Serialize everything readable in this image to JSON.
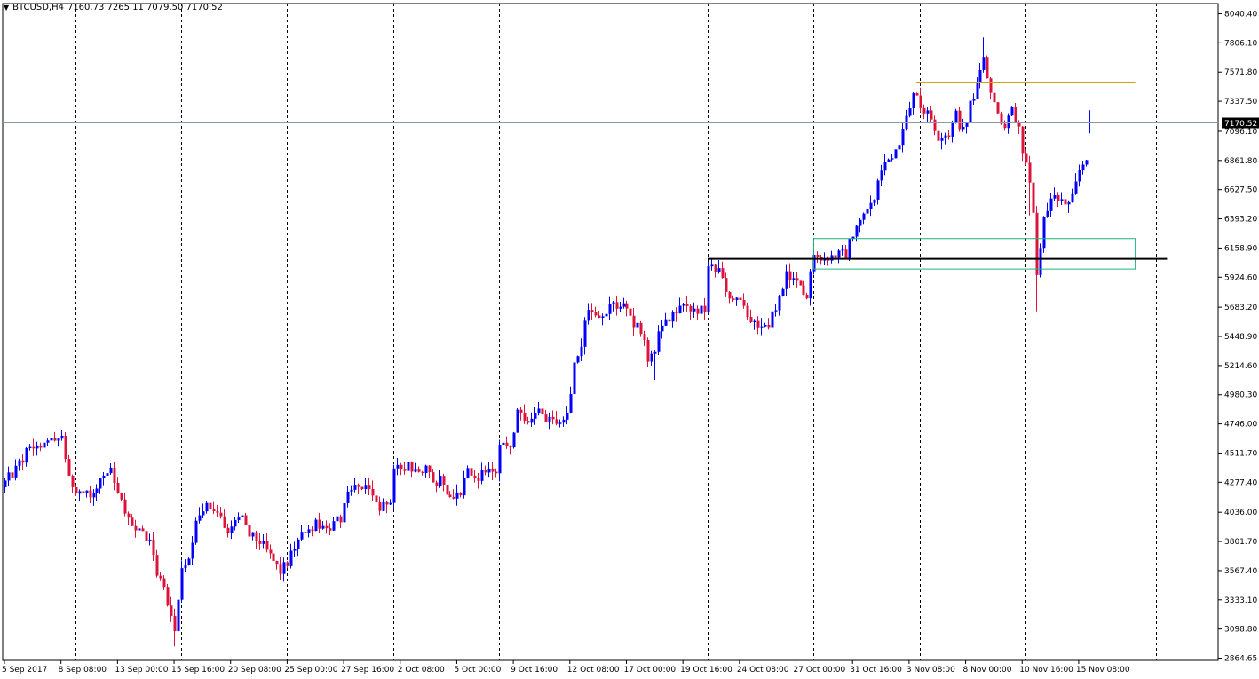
{
  "header": {
    "symbol_label": "BTCUSD,H4",
    "ohlc_text": "7160.73 7265.11 7079.50 7170.52",
    "menu_icon": "triangle-down-icon"
  },
  "colors": {
    "bull": "#0000ff",
    "bear": "#dc143c",
    "grid": "#000000",
    "price_line": "#8a9aa6",
    "resistance": "#d4a017",
    "support": "#000000",
    "zone": "#20b27a",
    "price_tag_bg": "#000000",
    "price_tag_fg": "#ffffff"
  },
  "chart_data": {
    "type": "candlestick",
    "symbol": "BTCUSD",
    "timeframe": "H4",
    "current_price": 7170.52,
    "current_price_label": "7170.52",
    "ylim": [
      2864.65,
      8040.4
    ],
    "y_ticks": [
      8040.4,
      7806.1,
      7571.8,
      7337.5,
      7096.1,
      6861.8,
      6627.5,
      6393.2,
      6158.9,
      5924.6,
      5683.2,
      5448.9,
      5214.6,
      4980.3,
      4746.0,
      4511.7,
      4277.4,
      4036.0,
      3801.7,
      3567.4,
      3333.1,
      3098.8,
      2864.65
    ],
    "y_tick_labels": [
      "8040.40",
      "7806.10",
      "7571.80",
      "7337.50",
      "7096.10",
      "6861.80",
      "6627.50",
      "6393.20",
      "6158.90",
      "5924.60",
      "5683.20",
      "5448.90",
      "5214.60",
      "4980.30",
      "4746.00",
      "4511.70",
      "4277.40",
      "4036.00",
      "3801.70",
      "3567.40",
      "3333.10",
      "3098.80",
      "2864.65"
    ],
    "x_labels": [
      "5 Sep 2017",
      "8 Sep 08:00",
      "13 Sep 00:00",
      "15 Sep 16:00",
      "20 Sep 08:00",
      "25 Sep 00:00",
      "27 Sep 16:00",
      "2 Oct 08:00",
      "5 Oct 00:00",
      "9 Oct 16:00",
      "12 Oct 08:00",
      "17 Oct 00:00",
      "19 Oct 16:00",
      "24 Oct 08:00",
      "27 Oct 00:00",
      "31 Oct 16:00",
      "3 Nov 08:00",
      "8 Nov 00:00",
      "10 Nov 16:00",
      "15 Nov 08:00"
    ],
    "x_label_index": [
      0,
      16,
      32,
      48,
      64,
      80,
      96,
      112,
      128,
      144,
      160,
      176,
      192,
      208,
      224,
      240,
      256,
      272,
      288,
      304
    ],
    "period_separator_index": [
      20,
      50,
      80,
      110,
      140,
      170,
      199,
      229,
      259,
      289,
      326
    ],
    "anchors": [
      [
        0,
        4277
      ],
      [
        3,
        4380
      ],
      [
        6,
        4520
      ],
      [
        10,
        4600
      ],
      [
        14,
        4580
      ],
      [
        16,
        4660
      ],
      [
        18,
        4290
      ],
      [
        20,
        4230
      ],
      [
        24,
        4160
      ],
      [
        27,
        4300
      ],
      [
        30,
        4350
      ],
      [
        33,
        4100
      ],
      [
        35,
        3960
      ],
      [
        38,
        3880
      ],
      [
        41,
        3800
      ],
      [
        43,
        3560
      ],
      [
        45,
        3420
      ],
      [
        47,
        3200
      ],
      [
        48,
        3080
      ],
      [
        50,
        3620
      ],
      [
        52,
        3700
      ],
      [
        54,
        3950
      ],
      [
        56,
        4080
      ],
      [
        60,
        4030
      ],
      [
        63,
        3900
      ],
      [
        66,
        4000
      ],
      [
        69,
        3850
      ],
      [
        72,
        3800
      ],
      [
        75,
        3680
      ],
      [
        78,
        3560
      ],
      [
        80,
        3630
      ],
      [
        82,
        3750
      ],
      [
        85,
        3900
      ],
      [
        88,
        3940
      ],
      [
        91,
        3900
      ],
      [
        95,
        3980
      ],
      [
        97,
        4160
      ],
      [
        100,
        4280
      ],
      [
        103,
        4180
      ],
      [
        106,
        4060
      ],
      [
        109,
        4120
      ],
      [
        110,
        4350
      ],
      [
        113,
        4420
      ],
      [
        116,
        4380
      ],
      [
        119,
        4380
      ],
      [
        121,
        4260
      ],
      [
        123,
        4300
      ],
      [
        126,
        4180
      ],
      [
        129,
        4200
      ],
      [
        131,
        4350
      ],
      [
        134,
        4330
      ],
      [
        137,
        4390
      ],
      [
        139,
        4350
      ],
      [
        140,
        4550
      ],
      [
        143,
        4560
      ],
      [
        145,
        4830
      ],
      [
        148,
        4780
      ],
      [
        151,
        4830
      ],
      [
        154,
        4760
      ],
      [
        157,
        4800
      ],
      [
        159,
        4830
      ],
      [
        161,
        5230
      ],
      [
        163,
        5380
      ],
      [
        165,
        5700
      ],
      [
        168,
        5600
      ],
      [
        171,
        5680
      ],
      [
        174,
        5720
      ],
      [
        177,
        5600
      ],
      [
        180,
        5500
      ],
      [
        182,
        5270
      ],
      [
        184,
        5330
      ],
      [
        186,
        5570
      ],
      [
        189,
        5620
      ],
      [
        192,
        5670
      ],
      [
        195,
        5660
      ],
      [
        198,
        5650
      ],
      [
        199,
        5990
      ],
      [
        202,
        5960
      ],
      [
        205,
        5760
      ],
      [
        208,
        5720
      ],
      [
        211,
        5570
      ],
      [
        213,
        5500
      ],
      [
        216,
        5580
      ],
      [
        219,
        5730
      ],
      [
        221,
        5930
      ],
      [
        224,
        5860
      ],
      [
        227,
        5750
      ],
      [
        229,
        6140
      ],
      [
        232,
        6080
      ],
      [
        235,
        6100
      ],
      [
        238,
        6110
      ],
      [
        240,
        6280
      ],
      [
        243,
        6400
      ],
      [
        246,
        6580
      ],
      [
        248,
        6760
      ],
      [
        250,
        6900
      ],
      [
        252,
        6930
      ],
      [
        255,
        7220
      ],
      [
        257,
        7420
      ],
      [
        259,
        7300
      ],
      [
        262,
        7200
      ],
      [
        264,
        7060
      ],
      [
        267,
        7080
      ],
      [
        269,
        7230
      ],
      [
        271,
        7080
      ],
      [
        273,
        7300
      ],
      [
        275,
        7460
      ],
      [
        277,
        7700
      ],
      [
        279,
        7380
      ],
      [
        281,
        7250
      ],
      [
        283,
        7120
      ],
      [
        285,
        7280
      ],
      [
        287,
        7100
      ],
      [
        289,
        6830
      ],
      [
        290,
        6640
      ],
      [
        291,
        6400
      ],
      [
        292,
        5920
      ],
      [
        293,
        6200
      ],
      [
        294,
        6400
      ],
      [
        296,
        6550
      ],
      [
        299,
        6530
      ],
      [
        302,
        6550
      ],
      [
        304,
        6780
      ],
      [
        306,
        6900
      ],
      [
        307,
        7170.52
      ]
    ],
    "horizontal_levels": [
      {
        "name": "resistance",
        "price": 7490,
        "from_index": 258,
        "to_index": 320
      },
      {
        "name": "support",
        "price": 6072,
        "from_index": 199,
        "to_index": 329
      }
    ],
    "zone": {
      "price_top": 6235,
      "price_bottom": 5990,
      "from_index": 229,
      "to_index": 320
    },
    "bar_count": 308
  }
}
